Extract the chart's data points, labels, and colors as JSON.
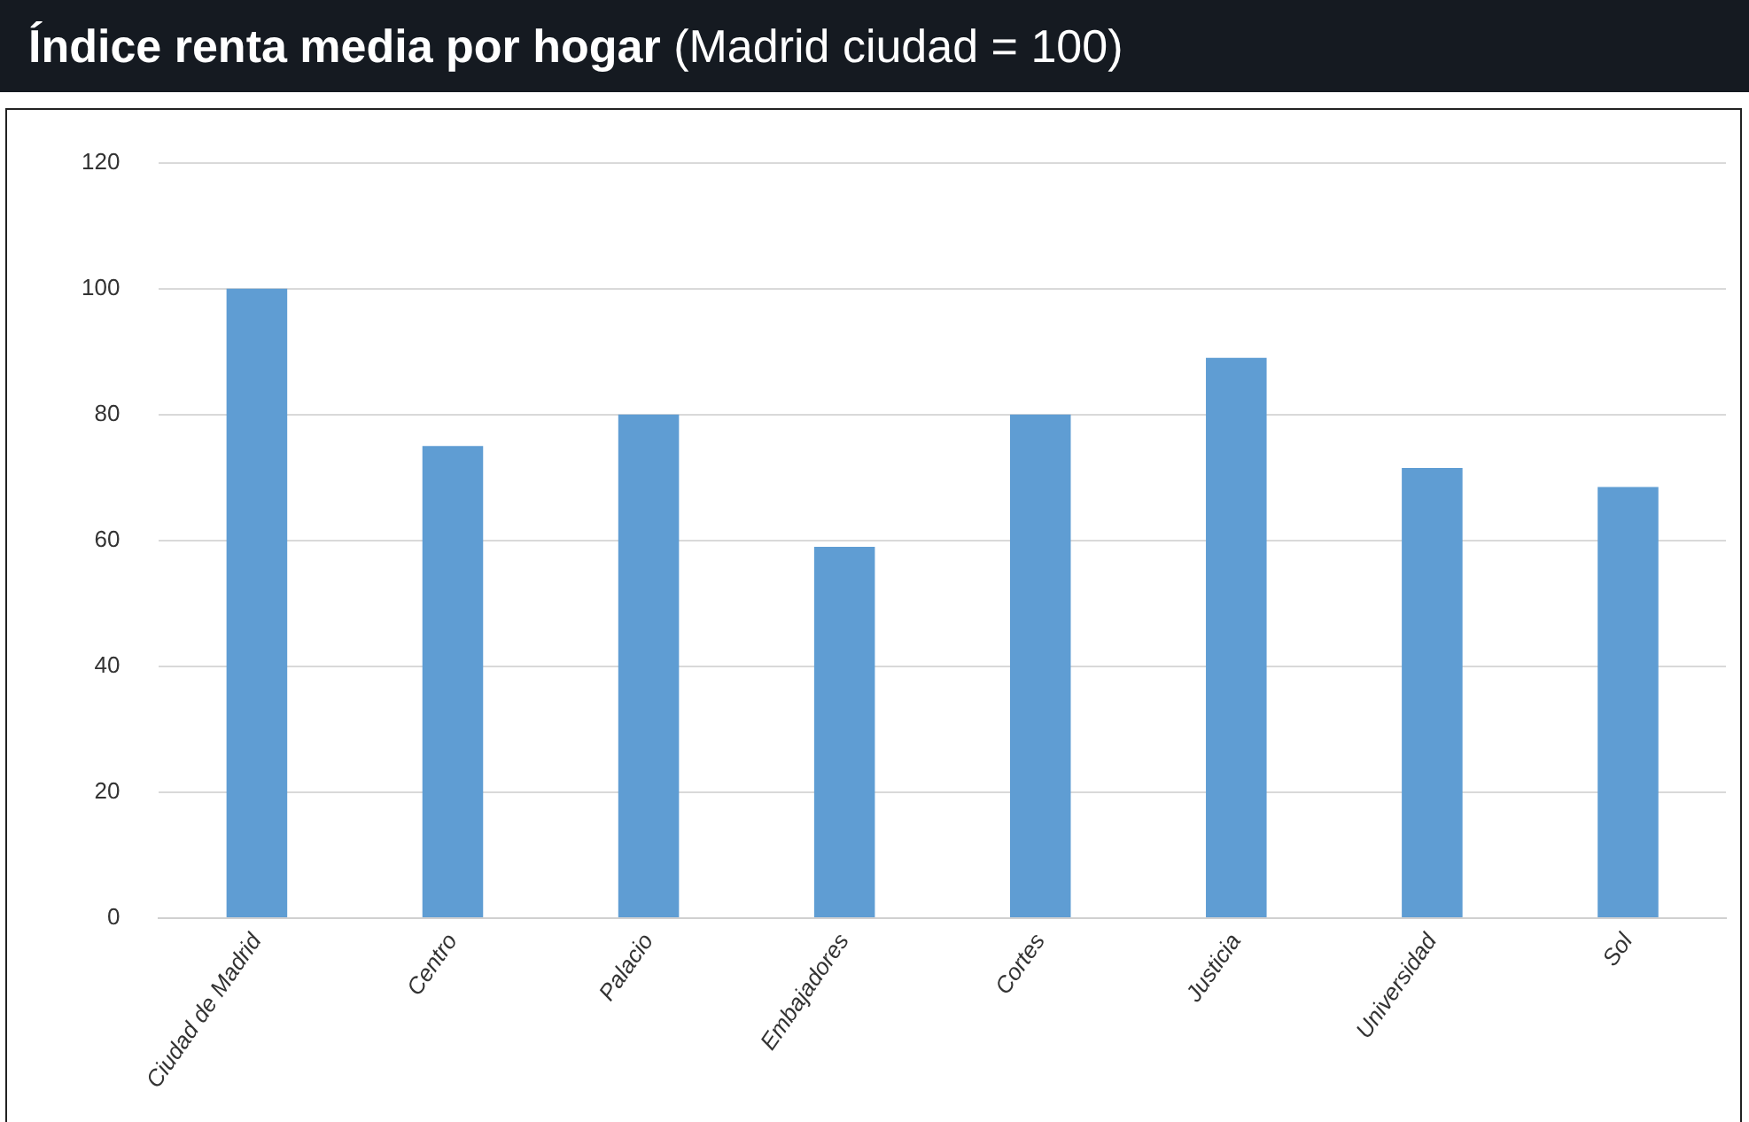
{
  "chart_data": {
    "type": "bar",
    "title": "Índice renta media por hogar",
    "subtitle": "(Madrid ciudad = 100)",
    "categories": [
      "Ciudad de Madrid",
      "Centro",
      "Palacio",
      "Embajadores",
      "Cortes",
      "Justicia",
      "Universidad",
      "Sol"
    ],
    "values": [
      100,
      75,
      80,
      59,
      80,
      89,
      71.5,
      68.5
    ],
    "color": "#5f9dd3",
    "ylim": [
      0,
      120
    ],
    "yticks": [
      0,
      20,
      40,
      60,
      80,
      100,
      120
    ],
    "grid": "y",
    "legend": false
  }
}
